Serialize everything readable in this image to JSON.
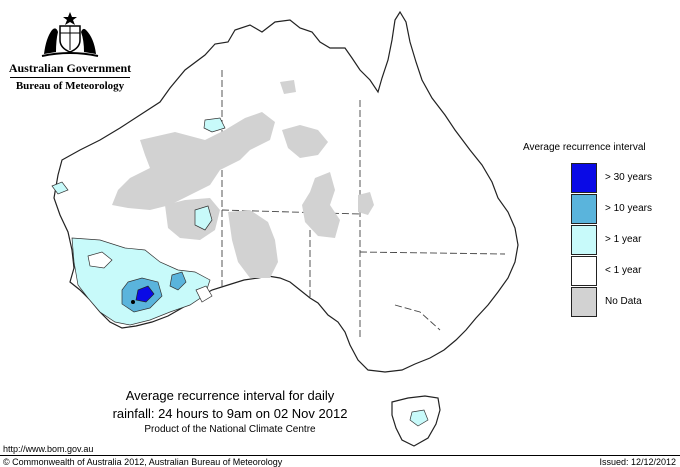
{
  "header": {
    "government": "Australian Government",
    "bureau": "Bureau of Meteorology"
  },
  "legend": {
    "title": "Average recurrence interval",
    "items": [
      {
        "label": "> 30 years",
        "color": "#0a0ae6"
      },
      {
        "label": "> 10 years",
        "color": "#5ab4dc"
      },
      {
        "label": "> 1 year",
        "color": "#c8fafa"
      },
      {
        "label": "< 1 year",
        "color": "#ffffff"
      },
      {
        "label": "No Data",
        "color": "#d2d2d2"
      }
    ]
  },
  "caption": {
    "line1": "Average recurrence interval for daily",
    "line2": "rainfall: 24 hours to 9am on 02 Nov 2012",
    "line3": "Product of the National Climate Centre"
  },
  "footer": {
    "url": "http://www.bom.gov.au",
    "copyright": "© Commonwealth of Australia 2012, Australian Bureau of Meteorology",
    "issued": "Issued: 12/12/2012"
  },
  "colors": {
    "no_data": "#d2d2d2",
    "over_1_year": "#c8fafa",
    "over_10_years": "#5ab4dc",
    "over_30_years": "#0a0ae6",
    "coast": "#222222"
  }
}
